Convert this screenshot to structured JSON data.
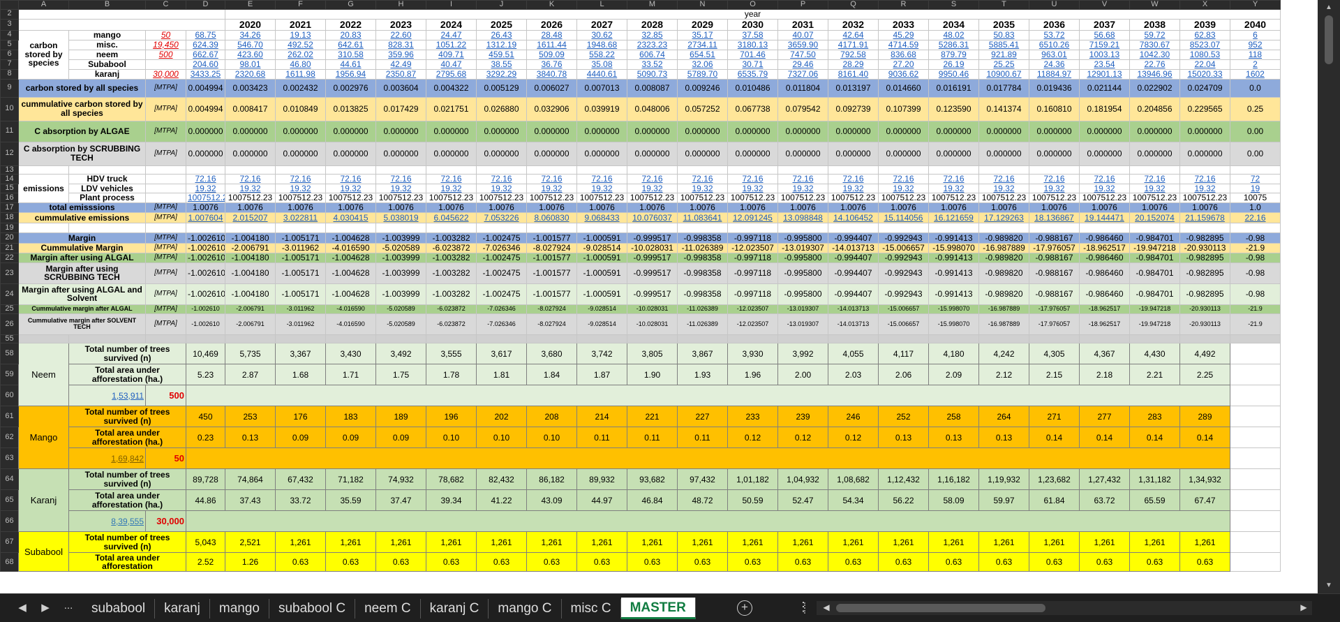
{
  "columns": [
    "",
    "A",
    "B",
    "C",
    "D",
    "E",
    "F",
    "G",
    "H",
    "I",
    "J",
    "K",
    "L",
    "M",
    "N",
    "O",
    "P",
    "Q",
    "R",
    "S",
    "T",
    "U",
    "V",
    "W",
    "X",
    "Y"
  ],
  "row_numbers": {
    "r2": "2",
    "r3": "3",
    "r4": "4",
    "r5": "5",
    "r6": "6",
    "r7": "7",
    "r8": "8",
    "r9": "9",
    "r10": "10",
    "r11": "11",
    "r12": "12",
    "r13": "13",
    "r14": "14",
    "r15": "15",
    "r16": "16",
    "r17": "17",
    "r18": "18",
    "r19": "19",
    "r20": "20",
    "r21": "21",
    "r22": "22",
    "r23": "23",
    "r24": "24",
    "r25": "25",
    "r26": "26",
    "r55": "55",
    "r58": "58",
    "r59": "59",
    "r60": "60",
    "r61": "61",
    "r62": "62",
    "r63": "63",
    "r64": "64",
    "r65": "65",
    "r66": "66",
    "r67": "67",
    "r68": "68"
  },
  "year_label": "year",
  "years": [
    "2020",
    "2021",
    "2022",
    "2023",
    "2024",
    "2025",
    "2026",
    "2027",
    "2028",
    "2029",
    "2030",
    "2031",
    "2032",
    "2033",
    "2034",
    "2035",
    "2036",
    "2037",
    "2038",
    "2039",
    "2040",
    "20"
  ],
  "unit": "[MTPA]",
  "carbon": {
    "label": "carbon stored by species",
    "rows": [
      {
        "b": "mango",
        "c": "50",
        "v": [
          "68.75",
          "34.26",
          "19.13",
          "20.83",
          "22.60",
          "24.47",
          "26.43",
          "28.48",
          "30.62",
          "32.85",
          "35.17",
          "37.58",
          "40.07",
          "42.64",
          "45.29",
          "48.02",
          "50.83",
          "53.72",
          "56.68",
          "59.72",
          "62.83",
          "6"
        ]
      },
      {
        "b": "misc.",
        "c": "19,450",
        "v": [
          "624.39",
          "546.70",
          "492.52",
          "642.61",
          "828.31",
          "1051.22",
          "1312.19",
          "1611.44",
          "1948.68",
          "2323.23",
          "2734.11",
          "3180.13",
          "3659.90",
          "4171.91",
          "4714.59",
          "5286.31",
          "5885.41",
          "6510.26",
          "7159.21",
          "7830.67",
          "8523.07",
          "952"
        ]
      },
      {
        "b": "neem",
        "c": "500",
        "v": [
          "662.67",
          "423.60",
          "262.02",
          "310.58",
          "359.96",
          "409.71",
          "459.51",
          "509.09",
          "558.22",
          "606.74",
          "654.51",
          "701.46",
          "747.50",
          "792.58",
          "836.68",
          "879.79",
          "921.89",
          "963.01",
          "1003.13",
          "1042.30",
          "1080.53",
          "118"
        ]
      },
      {
        "b": "Subabool",
        "c": "",
        "v": [
          "204.60",
          "98.01",
          "46.80",
          "44.61",
          "42.49",
          "40.47",
          "38.55",
          "36.76",
          "35.08",
          "33.52",
          "32.06",
          "30.71",
          "29.46",
          "28.29",
          "27.20",
          "26.19",
          "25.25",
          "24.36",
          "23.54",
          "22.76",
          "22.04",
          "2"
        ]
      },
      {
        "b": "karanj",
        "c": "30,000",
        "v": [
          "3433.25",
          "2320.68",
          "1611.98",
          "1956.94",
          "2350.87",
          "2795.68",
          "3292.29",
          "3840.78",
          "4440.61",
          "5090.73",
          "5789.70",
          "6535.79",
          "7327.06",
          "8161.40",
          "9036.62",
          "9950.46",
          "10900.67",
          "11884.97",
          "12901.13",
          "13946.96",
          "15020.33",
          "1602"
        ]
      }
    ]
  },
  "r9": {
    "label": "carbon stored by all species",
    "v": [
      "0.004994",
      "0.003423",
      "0.002432",
      "0.002976",
      "0.003604",
      "0.004322",
      "0.005129",
      "0.006027",
      "0.007013",
      "0.008087",
      "0.009246",
      "0.010486",
      "0.011804",
      "0.013197",
      "0.014660",
      "0.016191",
      "0.017784",
      "0.019436",
      "0.021144",
      "0.022902",
      "0.024709",
      "0.0"
    ]
  },
  "r10": {
    "label": "cummulative carbon stored by all species",
    "v": [
      "0.004994",
      "0.008417",
      "0.010849",
      "0.013825",
      "0.017429",
      "0.021751",
      "0.026880",
      "0.032906",
      "0.039919",
      "0.048006",
      "0.057252",
      "0.067738",
      "0.079542",
      "0.092739",
      "0.107399",
      "0.123590",
      "0.141374",
      "0.160810",
      "0.181954",
      "0.204856",
      "0.229565",
      "0.25"
    ]
  },
  "r11": {
    "label": "C absorption by ALGAE",
    "v": [
      "0.000000",
      "0.000000",
      "0.000000",
      "0.000000",
      "0.000000",
      "0.000000",
      "0.000000",
      "0.000000",
      "0.000000",
      "0.000000",
      "0.000000",
      "0.000000",
      "0.000000",
      "0.000000",
      "0.000000",
      "0.000000",
      "0.000000",
      "0.000000",
      "0.000000",
      "0.000000",
      "0.000000",
      "0.00"
    ]
  },
  "r12": {
    "label": "C absorption by SCRUBBING TECH",
    "v": [
      "0.000000",
      "0.000000",
      "0.000000",
      "0.000000",
      "0.000000",
      "0.000000",
      "0.000000",
      "0.000000",
      "0.000000",
      "0.000000",
      "0.000000",
      "0.000000",
      "0.000000",
      "0.000000",
      "0.000000",
      "0.000000",
      "0.000000",
      "0.000000",
      "0.000000",
      "0.000000",
      "0.000000",
      "0.00"
    ]
  },
  "emissions": {
    "label": "emissions",
    "hdv": {
      "label": "HDV truck",
      "v": [
        "72.16",
        "72.16",
        "72.16",
        "72.16",
        "72.16",
        "72.16",
        "72.16",
        "72.16",
        "72.16",
        "72.16",
        "72.16",
        "72.16",
        "72.16",
        "72.16",
        "72.16",
        "72.16",
        "72.16",
        "72.16",
        "72.16",
        "72.16",
        "72.16",
        "72"
      ]
    },
    "ldv": {
      "label": "LDV vehicles",
      "v": [
        "19.32",
        "19.32",
        "19.32",
        "19.32",
        "19.32",
        "19.32",
        "19.32",
        "19.32",
        "19.32",
        "19.32",
        "19.32",
        "19.32",
        "19.32",
        "19.32",
        "19.32",
        "19.32",
        "19.32",
        "19.32",
        "19.32",
        "19.32",
        "19.32",
        "19"
      ]
    },
    "plant": {
      "label": "Plant process",
      "v": [
        "1007512.23",
        "1007512.23",
        "1007512.23",
        "1007512.23",
        "1007512.23",
        "1007512.23",
        "1007512.23",
        "1007512.23",
        "1007512.23",
        "1007512.23",
        "1007512.23",
        "1007512.23",
        "1007512.23",
        "1007512.23",
        "1007512.23",
        "1007512.23",
        "1007512.23",
        "1007512.23",
        "1007512.23",
        "1007512.23",
        "1007512.23",
        "10075"
      ]
    }
  },
  "r17": {
    "label": "total emisssions",
    "v": [
      "1.0076",
      "1.0076",
      "1.0076",
      "1.0076",
      "1.0076",
      "1.0076",
      "1.0076",
      "1.0076",
      "1.0076",
      "1.0076",
      "1.0076",
      "1.0076",
      "1.0076",
      "1.0076",
      "1.0076",
      "1.0076",
      "1.0076",
      "1.0076",
      "1.0076",
      "1.0076",
      "1.0076",
      "1.0"
    ]
  },
  "r18": {
    "label": "cummulative emissions",
    "v": [
      "1.007604",
      "2.015207",
      "3.022811",
      "4.030415",
      "5.038019",
      "6.045622",
      "7.053226",
      "8.060830",
      "9.068433",
      "10.076037",
      "11.083641",
      "12.091245",
      "13.098848",
      "14.106452",
      "15.114056",
      "16.121659",
      "17.129263",
      "18.136867",
      "19.144471",
      "20.152074",
      "21.159678",
      "22.16"
    ]
  },
  "r20": {
    "label": "Margin",
    "v": [
      "-1.002610",
      "-1.004180",
      "-1.005171",
      "-1.004628",
      "-1.003999",
      "-1.003282",
      "-1.002475",
      "-1.001577",
      "-1.000591",
      "-0.999517",
      "-0.998358",
      "-0.997118",
      "-0.995800",
      "-0.994407",
      "-0.992943",
      "-0.991413",
      "-0.989820",
      "-0.988167",
      "-0.986460",
      "-0.984701",
      "-0.982895",
      "-0.98"
    ]
  },
  "r21": {
    "label": "Cummulative Margin",
    "v": [
      "-1.002610",
      "-2.006791",
      "-3.011962",
      "-4.016590",
      "-5.020589",
      "-6.023872",
      "-7.026346",
      "-8.027924",
      "-9.028514",
      "-10.028031",
      "-11.026389",
      "-12.023507",
      "-13.019307",
      "-14.013713",
      "-15.006657",
      "-15.998070",
      "-16.987889",
      "-17.976057",
      "-18.962517",
      "-19.947218",
      "-20.930113",
      "-21.9"
    ]
  },
  "r22": {
    "label": "Margin after using ALGAL",
    "v": [
      "-1.002610",
      "-1.004180",
      "-1.005171",
      "-1.004628",
      "-1.003999",
      "-1.003282",
      "-1.002475",
      "-1.001577",
      "-1.000591",
      "-0.999517",
      "-0.998358",
      "-0.997118",
      "-0.995800",
      "-0.994407",
      "-0.992943",
      "-0.991413",
      "-0.989820",
      "-0.988167",
      "-0.986460",
      "-0.984701",
      "-0.982895",
      "-0.98"
    ]
  },
  "r23": {
    "label": "Margin after using SCRUBBING TECH",
    "v": [
      "-1.002610",
      "-1.004180",
      "-1.005171",
      "-1.004628",
      "-1.003999",
      "-1.003282",
      "-1.002475",
      "-1.001577",
      "-1.000591",
      "-0.999517",
      "-0.998358",
      "-0.997118",
      "-0.995800",
      "-0.994407",
      "-0.992943",
      "-0.991413",
      "-0.989820",
      "-0.988167",
      "-0.986460",
      "-0.984701",
      "-0.982895",
      "-0.98"
    ]
  },
  "r24": {
    "label": "Margin after using ALGAL and Solvent",
    "v": [
      "-1.002610",
      "-1.004180",
      "-1.005171",
      "-1.004628",
      "-1.003999",
      "-1.003282",
      "-1.002475",
      "-1.001577",
      "-1.000591",
      "-0.999517",
      "-0.998358",
      "-0.997118",
      "-0.995800",
      "-0.994407",
      "-0.992943",
      "-0.991413",
      "-0.989820",
      "-0.988167",
      "-0.986460",
      "-0.984701",
      "-0.982895",
      "-0.98"
    ]
  },
  "r25": {
    "label": "Cummulative margin after ALGAL",
    "v": [
      "-1.002610",
      "-2.006791",
      "-3.011962",
      "-4.016590",
      "-5.020589",
      "-6.023872",
      "-7.026346",
      "-8.027924",
      "-9.028514",
      "-10.028031",
      "-11.026389",
      "-12.023507",
      "-13.019307",
      "-14.013713",
      "-15.006657",
      "-15.998070",
      "-16.987889",
      "-17.976057",
      "-18.962517",
      "-19.947218",
      "-20.930113",
      "-21.9"
    ]
  },
  "r26": {
    "label": "Cummulative margin after SOLVENT TECH",
    "v": [
      "-1.002610",
      "-2.006791",
      "-3.011962",
      "-4.016590",
      "-5.020589",
      "-6.023872",
      "-7.026346",
      "-8.027924",
      "-9.028514",
      "-10.028031",
      "-11.026389",
      "-12.023507",
      "-13.019307",
      "-14.013713",
      "-15.006657",
      "-15.998070",
      "-16.987889",
      "-17.976057",
      "-18.962517",
      "-19.947218",
      "-20.930113",
      "-21.9"
    ]
  },
  "trees_label": "Total number of trees survived (n)",
  "area_label": "Total area under afforestation (ha.)",
  "area_label_short": "Total area under afforestation",
  "blocks": [
    {
      "name": "Neem",
      "total": "1,53,911",
      "target": "500",
      "color": "#e2efda",
      "trees": [
        "10,469",
        "5,735",
        "3,367",
        "3,430",
        "3,492",
        "3,555",
        "3,617",
        "3,680",
        "3,742",
        "3,805",
        "3,867",
        "3,930",
        "3,992",
        "4,055",
        "4,117",
        "4,180",
        "4,242",
        "4,305",
        "4,367",
        "4,430",
        "4,492"
      ],
      "area": [
        "5.23",
        "2.87",
        "1.68",
        "1.71",
        "1.75",
        "1.78",
        "1.81",
        "1.84",
        "1.87",
        "1.90",
        "1.93",
        "1.96",
        "2.00",
        "2.03",
        "2.06",
        "2.09",
        "2.12",
        "2.15",
        "2.18",
        "2.21",
        "2.25"
      ]
    },
    {
      "name": "Mango",
      "total": "1,69,842",
      "target": "50",
      "color": "#ffc000",
      "trees": [
        "450",
        "253",
        "176",
        "183",
        "189",
        "196",
        "202",
        "208",
        "214",
        "221",
        "227",
        "233",
        "239",
        "246",
        "252",
        "258",
        "264",
        "271",
        "277",
        "283",
        "289"
      ],
      "area": [
        "0.23",
        "0.13",
        "0.09",
        "0.09",
        "0.09",
        "0.10",
        "0.10",
        "0.10",
        "0.11",
        "0.11",
        "0.11",
        "0.12",
        "0.12",
        "0.12",
        "0.13",
        "0.13",
        "0.13",
        "0.14",
        "0.14",
        "0.14",
        "0.14"
      ]
    },
    {
      "name": "Karanj",
      "total": "8,39,555",
      "target": "30,000",
      "color": "#c6e0b4",
      "trees": [
        "89,728",
        "74,864",
        "67,432",
        "71,182",
        "74,932",
        "78,682",
        "82,432",
        "86,182",
        "89,932",
        "93,682",
        "97,432",
        "1,01,182",
        "1,04,932",
        "1,08,682",
        "1,12,432",
        "1,16,182",
        "1,19,932",
        "1,23,682",
        "1,27,432",
        "1,31,182",
        "1,34,932"
      ],
      "area": [
        "44.86",
        "37.43",
        "33.72",
        "35.59",
        "37.47",
        "39.34",
        "41.22",
        "43.09",
        "44.97",
        "46.84",
        "48.72",
        "50.59",
        "52.47",
        "54.34",
        "56.22",
        "58.09",
        "59.97",
        "61.84",
        "63.72",
        "65.59",
        "67.47"
      ]
    },
    {
      "name": "Subabool",
      "total": "",
      "target": "",
      "color": "#ffff00",
      "trees": [
        "5,043",
        "2,521",
        "1,261",
        "1,261",
        "1,261",
        "1,261",
        "1,261",
        "1,261",
        "1,261",
        "1,261",
        "1,261",
        "1,261",
        "1,261",
        "1,261",
        "1,261",
        "1,261",
        "1,261",
        "1,261",
        "1,261",
        "1,261",
        "1,261"
      ],
      "area": [
        "2.52",
        "1.26",
        "0.63",
        "0.63",
        "0.63",
        "0.63",
        "0.63",
        "0.63",
        "0.63",
        "0.63",
        "0.63",
        "0.63",
        "0.63",
        "0.63",
        "0.63",
        "0.63",
        "0.63",
        "0.63",
        "0.63",
        "0.63",
        "0.63"
      ]
    }
  ],
  "colors": {
    "blue": "#8eaadb",
    "peach": "#ffe699",
    "green": "#a9d08e",
    "grey": "#d9d9d9",
    "lightgreen": "#e2efda",
    "link": "#1f5fbf",
    "red": "#e00000",
    "accent": "#107c41"
  },
  "tabs": [
    "subabool",
    "karanj",
    "mango",
    "subabool C",
    "neem C",
    "karanj C",
    "mango C",
    "misc C",
    "MASTER"
  ],
  "active_tab": "MASTER",
  "nav": {
    "prev": "◀",
    "next": "▶",
    "more": "...",
    "add": "+",
    "menu": "⋮"
  }
}
